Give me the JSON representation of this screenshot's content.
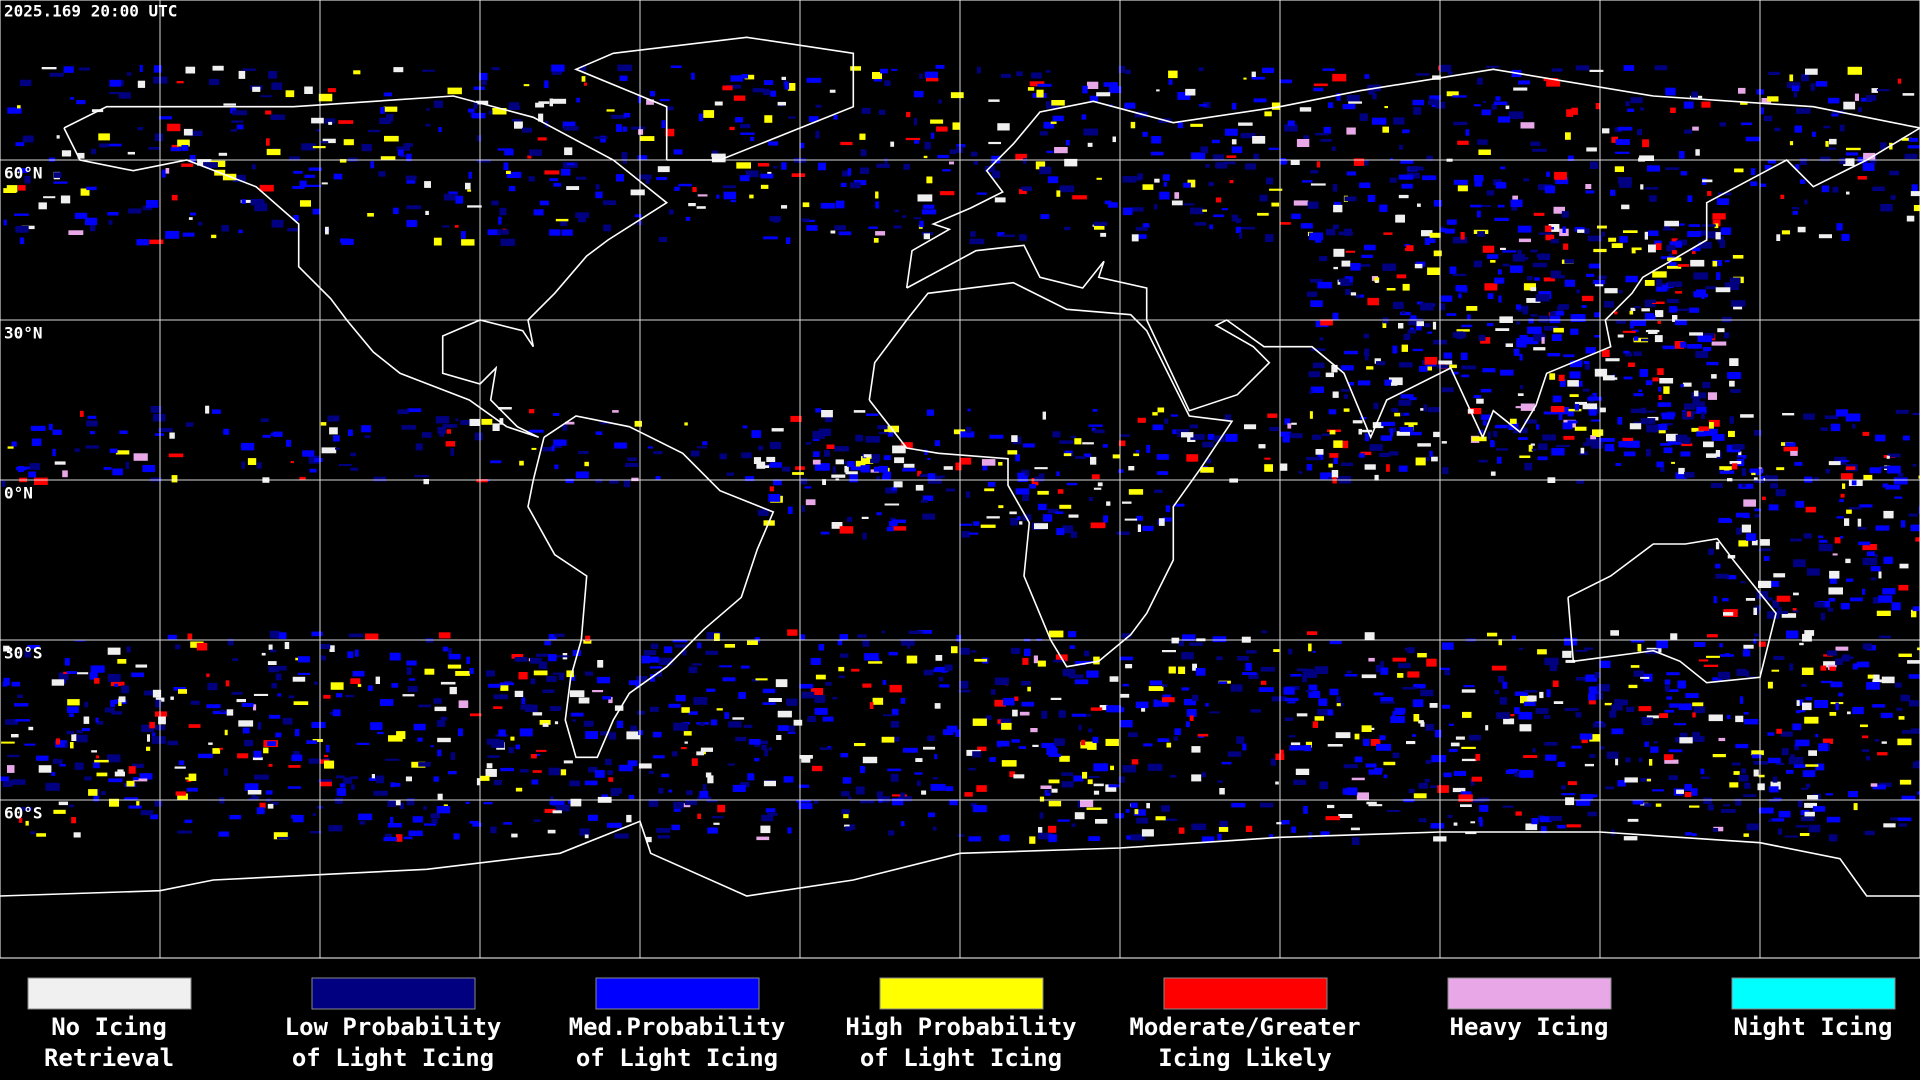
{
  "header": {
    "timestamp": "2025.169 20:00 UTC"
  },
  "map": {
    "latitude_labels": [
      "60°N",
      "30°N",
      "0°N",
      "30°S",
      "60°S"
    ]
  },
  "legend": [
    {
      "color": "#f0f0f0",
      "lines": [
        "No Icing",
        "Retrieval"
      ]
    },
    {
      "color": "#000080",
      "lines": [
        "Low Probability",
        "of Light Icing"
      ]
    },
    {
      "color": "#0000ff",
      "lines": [
        "Med.Probability",
        "of Light Icing"
      ]
    },
    {
      "color": "#ffff00",
      "lines": [
        "High Probability",
        "of Light Icing"
      ]
    },
    {
      "color": "#ff0000",
      "lines": [
        "Moderate/Greater",
        "Icing Likely"
      ]
    },
    {
      "color": "#e8a8e8",
      "lines": [
        "Heavy Icing",
        ""
      ]
    },
    {
      "color": "#00ffff",
      "lines": [
        "Night Icing",
        ""
      ]
    }
  ]
}
